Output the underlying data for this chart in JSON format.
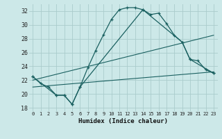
{
  "xlabel": "Humidex (Indice chaleur)",
  "bg_color": "#cce8e8",
  "grid_color": "#aacccc",
  "line_color": "#1a6060",
  "xlim": [
    -0.5,
    23.5
  ],
  "ylim": [
    17.5,
    33.0
  ],
  "xticks": [
    0,
    1,
    2,
    3,
    4,
    5,
    6,
    7,
    8,
    9,
    10,
    11,
    12,
    13,
    14,
    15,
    16,
    17,
    18,
    19,
    20,
    21,
    22,
    23
  ],
  "yticks": [
    18,
    20,
    22,
    24,
    26,
    28,
    30,
    32
  ],
  "curve1_x": [
    0,
    1,
    2,
    3,
    4,
    5,
    6,
    7,
    8,
    9,
    10,
    11,
    12,
    13,
    14,
    15,
    16,
    17,
    18,
    19,
    20,
    21,
    22,
    23
  ],
  "curve1_y": [
    22.5,
    21.5,
    21.0,
    19.8,
    19.8,
    18.5,
    21.0,
    23.8,
    26.3,
    28.6,
    30.8,
    32.2,
    32.5,
    32.5,
    32.2,
    31.5,
    31.7,
    30.2,
    28.5,
    27.5,
    25.0,
    24.8,
    23.5,
    23.0
  ],
  "curve2_x": [
    0,
    3,
    4,
    5,
    6,
    14,
    19,
    20,
    23
  ],
  "curve2_y": [
    22.5,
    19.8,
    19.8,
    18.5,
    21.0,
    32.2,
    27.5,
    25.0,
    23.0
  ],
  "line1_x": [
    0,
    23
  ],
  "line1_y": [
    22.0,
    28.5
  ],
  "line2_x": [
    0,
    23
  ],
  "line2_y": [
    21.0,
    23.2
  ]
}
